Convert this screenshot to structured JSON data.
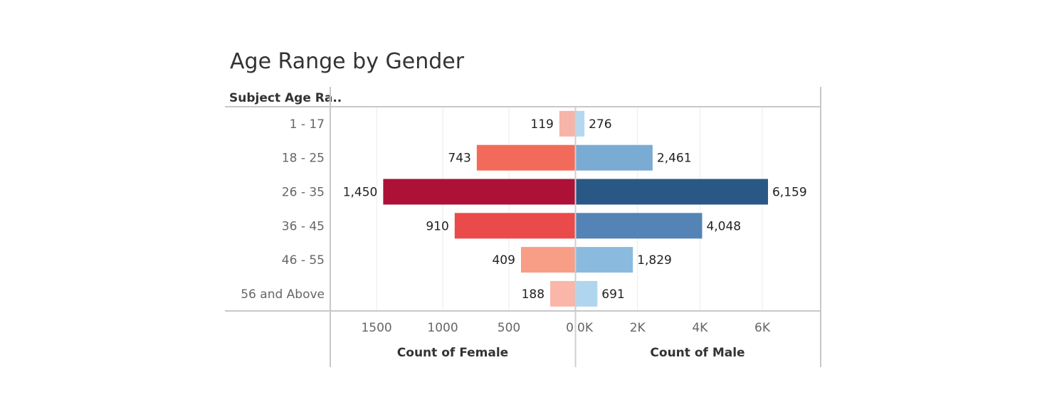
{
  "chart_data": {
    "type": "bar",
    "title": "Age Range by Gender",
    "row_header": "Subject Age Ra..",
    "categories": [
      "1 - 17",
      "18 - 25",
      "26 - 35",
      "36 - 45",
      "46 - 55",
      "56 and Above"
    ],
    "series": [
      {
        "name": "Count of Female",
        "values": [
          119,
          743,
          1450,
          910,
          409,
          188
        ],
        "value_labels": [
          "119",
          "743",
          "1,450",
          "910",
          "409",
          "188"
        ],
        "colors": [
          "#f7b4a8",
          "#f26b5a",
          "#ad1136",
          "#eb4a4a",
          "#f89e86",
          "#f9b6a9"
        ],
        "xlim": [
          0,
          1850
        ],
        "ticks": [
          0,
          500,
          1000,
          1500
        ],
        "tick_labels": [
          "0",
          "500",
          "1000",
          "1500"
        ],
        "xlabel": "Count of Female"
      },
      {
        "name": "Count of Male",
        "values": [
          276,
          2461,
          6159,
          4048,
          1829,
          691
        ],
        "value_labels": [
          "276",
          "2,461",
          "6,159",
          "4,048",
          "1,829",
          "691"
        ],
        "colors": [
          "#b5d8f0",
          "#7aabd3",
          "#2a5886",
          "#5384b5",
          "#8bbadf",
          "#b0d5ee"
        ],
        "xlim": [
          0,
          7870
        ],
        "ticks": [
          0,
          2000,
          4000,
          6000
        ],
        "tick_labels": [
          "0K",
          "2K",
          "4K",
          "6K"
        ],
        "xlabel": "Count of Male"
      }
    ]
  }
}
